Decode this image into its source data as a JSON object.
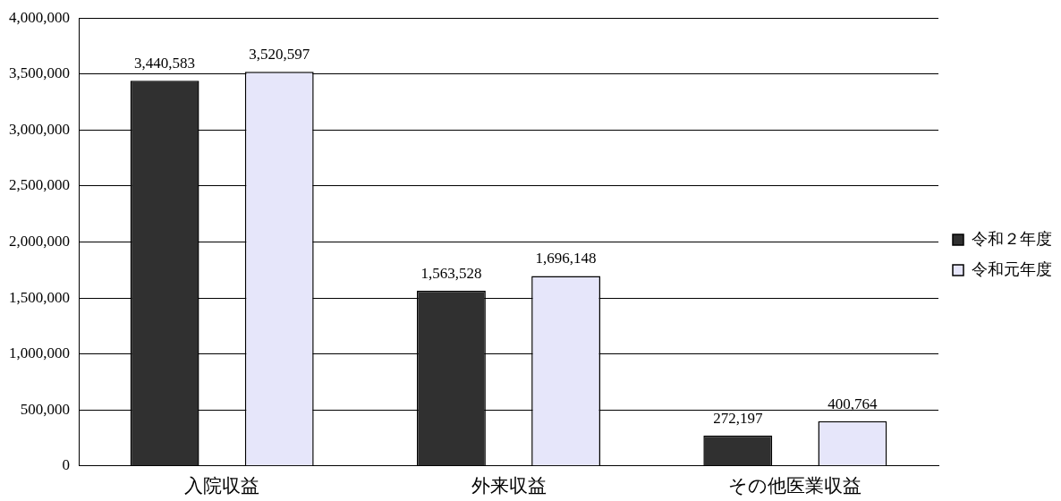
{
  "chart_data": {
    "type": "bar",
    "categories": [
      "入院収益",
      "外来収益",
      "その他医業収益"
    ],
    "series": [
      {
        "name": "令和２年度",
        "color": "#303030",
        "values": [
          3440583,
          1563528,
          272197
        ],
        "value_labels": [
          "3,440,583",
          "1,563,528",
          "272,197"
        ]
      },
      {
        "name": "令和元年度",
        "color": "#e6e6fa",
        "values": [
          3520597,
          1696148,
          400764
        ],
        "value_labels": [
          "3,520,597",
          "1,696,148",
          "400,764"
        ]
      }
    ],
    "ylim": [
      0,
      4000000
    ],
    "yticks": [
      {
        "value": 0,
        "label": "0"
      },
      {
        "value": 500000,
        "label": "500,000"
      },
      {
        "value": 1000000,
        "label": "1,000,000"
      },
      {
        "value": 1500000,
        "label": "1,500,000"
      },
      {
        "value": 2000000,
        "label": "2,000,000"
      },
      {
        "value": 2500000,
        "label": "2,500,000"
      },
      {
        "value": 3000000,
        "label": "3,000,000"
      },
      {
        "value": 3500000,
        "label": "3,500,000"
      },
      {
        "value": 4000000,
        "label": "4,000,000"
      }
    ],
    "grid": "y",
    "legend": "right"
  }
}
